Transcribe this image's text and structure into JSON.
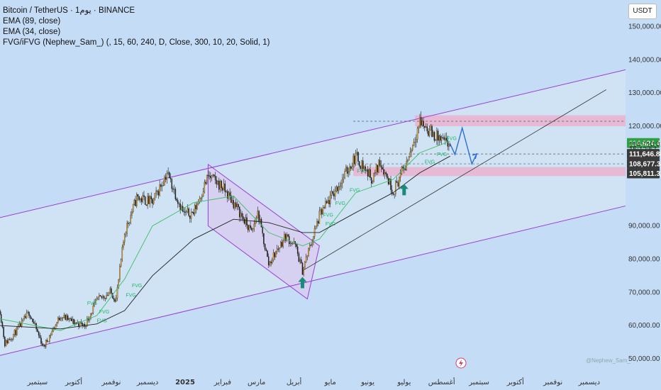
{
  "legend": {
    "symbol": "Bitcoin / TetherUS · 1يوم · BINANCE",
    "ema1": "EMA (89, close)",
    "ema2": "EMA (34, close)",
    "indicator": "FVG/iFVG (Nephew_Sam_) (, 15, 60, 240, D, Close, 300, 10, 20, Solid, 1)"
  },
  "currency_button": "USDT",
  "watermark": "@Nephew_Sam_",
  "colors": {
    "background": "#c5dcf6",
    "bull": "#f7a823",
    "bear": "#1d1d1d",
    "channel": "#9b3fd8",
    "fvg_zone": "#f0a8c8",
    "ema_fast": "#3cbf60",
    "ema_slow": "#222222",
    "projection": "#2b6fd6",
    "arrow": "#1a8a7a",
    "price_tag_green": "#2ea043",
    "price_tag_dark": "#3a3a3a"
  },
  "chart_data": {
    "type": "candlestick",
    "title": "Bitcoin / TetherUS · 1يوم · BINANCE",
    "yaxis_ticks": [
      "150,000.00",
      "140,000.00",
      "130,000.00",
      "120,000.00",
      "90,000.00",
      "80,000.00",
      "70,000.00",
      "60,000.00",
      "50,000.00"
    ],
    "xaxis_ticks": [
      "سبتمبر",
      "أكتوبر",
      "نوفمبر",
      "ديسمبر",
      "2025",
      "فبراير",
      "مارس",
      "أبريل",
      "مايو",
      "يونيو",
      "يوليو",
      "أغسطس",
      "سبتمبر",
      "أكتوبر",
      "نوفمبر",
      "ديسمبر"
    ],
    "ylim": [
      47000,
      158000
    ],
    "xlim": [
      "2024-08-01",
      "2025-12-31"
    ],
    "price_labels": [
      {
        "value": 114924.46,
        "text": "114,924.46",
        "style": "green"
      },
      {
        "value": 114710.01,
        "text": "114,710.01",
        "style": "plain"
      },
      {
        "value": 113100,
        "text": "15:12:57",
        "style": "plain"
      },
      {
        "value": 111646.88,
        "text": "111,646.88",
        "style": "dark"
      },
      {
        "value": 108677.34,
        "text": "108,677.34",
        "style": "dark"
      },
      {
        "value": 105811.32,
        "text": "105,811.32",
        "style": "dark"
      }
    ],
    "close_path": [
      [
        "2024-08-01",
        64500
      ],
      [
        "2024-08-05",
        54500
      ],
      [
        "2024-08-15",
        58500
      ],
      [
        "2024-08-25",
        64000
      ],
      [
        "2024-09-06",
        53500
      ],
      [
        "2024-09-20",
        63000
      ],
      [
        "2024-10-01",
        61000
      ],
      [
        "2024-10-10",
        60000
      ],
      [
        "2024-10-20",
        67500
      ],
      [
        "2024-10-31",
        70000
      ],
      [
        "2024-11-05",
        68000
      ],
      [
        "2024-11-12",
        88000
      ],
      [
        "2024-11-22",
        98500
      ],
      [
        "2024-12-05",
        97000
      ],
      [
        "2024-12-17",
        106000
      ],
      [
        "2024-12-31",
        93500
      ],
      [
        "2025-01-08",
        94000
      ],
      [
        "2025-01-20",
        105000
      ],
      [
        "2025-01-31",
        102000
      ],
      [
        "2025-02-10",
        97000
      ],
      [
        "2025-02-25",
        88000
      ],
      [
        "2025-03-02",
        94000
      ],
      [
        "2025-03-11",
        78500
      ],
      [
        "2025-03-25",
        87000
      ],
      [
        "2025-04-02",
        84000
      ],
      [
        "2025-04-08",
        76500
      ],
      [
        "2025-04-22",
        93000
      ],
      [
        "2025-05-10",
        103500
      ],
      [
        "2025-05-22",
        111000
      ],
      [
        "2025-06-05",
        104000
      ],
      [
        "2025-06-11",
        109500
      ],
      [
        "2025-06-22",
        100500
      ],
      [
        "2025-07-03",
        109000
      ],
      [
        "2025-07-14",
        121500
      ],
      [
        "2025-07-25",
        117500
      ],
      [
        "2025-08-05",
        114500
      ],
      [
        "2025-08-08",
        114710
      ]
    ],
    "ema_fast_path": [
      [
        "2024-08-01",
        62000
      ],
      [
        "2024-09-20",
        58500
      ],
      [
        "2024-10-20",
        63000
      ],
      [
        "2024-11-12",
        74000
      ],
      [
        "2024-12-05",
        90000
      ],
      [
        "2025-01-08",
        97000
      ],
      [
        "2025-02-10",
        99000
      ],
      [
        "2025-03-11",
        88000
      ],
      [
        "2025-04-08",
        84000
      ],
      [
        "2025-04-22",
        86000
      ],
      [
        "2025-05-22",
        100000
      ],
      [
        "2025-06-22",
        104000
      ],
      [
        "2025-07-14",
        112000
      ],
      [
        "2025-08-08",
        115500
      ]
    ],
    "ema_slow_path": [
      [
        "2024-08-01",
        60000
      ],
      [
        "2024-09-20",
        59000
      ],
      [
        "2024-10-20",
        60500
      ],
      [
        "2024-11-12",
        64500
      ],
      [
        "2024-12-05",
        75000
      ],
      [
        "2025-01-08",
        86000
      ],
      [
        "2025-02-10",
        92000
      ],
      [
        "2025-03-11",
        91000
      ],
      [
        "2025-04-08",
        88000
      ],
      [
        "2025-04-22",
        88000
      ],
      [
        "2025-05-22",
        94000
      ],
      [
        "2025-06-22",
        100000
      ],
      [
        "2025-07-14",
        106000
      ],
      [
        "2025-08-08",
        111000
      ]
    ],
    "channel": {
      "upper": [
        [
          "2024-08-01",
          92500
        ],
        [
          "2025-12-31",
          137000
        ]
      ],
      "lower": [
        [
          "2024-08-01",
          51000
        ],
        [
          "2025-12-31",
          96000
        ]
      ],
      "mid_trendline": [
        [
          "2025-04-08",
          76500
        ],
        [
          "2025-12-15",
          131000
        ]
      ]
    },
    "falling_channel": {
      "upper": [
        [
          "2025-01-20",
          108500
        ],
        [
          "2025-04-22",
          84000
        ]
      ],
      "lower": [
        [
          "2025-01-20",
          90000
        ],
        [
          "2025-04-12",
          68000
        ]
      ]
    },
    "fvg_zones": [
      {
        "from": "2025-07-10",
        "to": "2025-12-31",
        "low": 120000,
        "high": 123300
      },
      {
        "from": "2025-05-20",
        "to": "2025-12-31",
        "low": 105000,
        "high": 107700
      }
    ],
    "fvg_labels": [
      {
        "x": "2024-10-12",
        "y": 66200
      },
      {
        "x": "2024-10-22",
        "y": 63600
      },
      {
        "x": "2024-10-20",
        "y": 61000
      },
      {
        "x": "2024-11-18",
        "y": 71600
      },
      {
        "x": "2024-11-13",
        "y": 68700
      },
      {
        "x": "2025-04-25",
        "y": 92800
      },
      {
        "x": "2025-04-27",
        "y": 90100
      },
      {
        "x": "2025-05-05",
        "y": 96300
      },
      {
        "x": "2025-05-17",
        "y": 100300
      },
      {
        "x": "2025-05-23",
        "y": 106000
      },
      {
        "x": "2025-07-18",
        "y": 108800
      },
      {
        "x": "2025-07-28",
        "y": 111000
      },
      {
        "x": "2025-08-05",
        "y": 115800
      }
    ],
    "dashed_levels": [
      111646.88,
      108677.34,
      121500
    ],
    "projection_path": [
      [
        "2025-08-08",
        114710
      ],
      [
        "2025-08-12",
        111500
      ],
      [
        "2025-08-18",
        119500
      ],
      [
        "2025-08-26",
        108700
      ],
      [
        "2025-08-30",
        111700
      ]
    ],
    "arrows": [
      {
        "x": "2025-04-08",
        "y": 72500
      },
      {
        "x": "2025-07-01",
        "y": 100500
      }
    ]
  }
}
